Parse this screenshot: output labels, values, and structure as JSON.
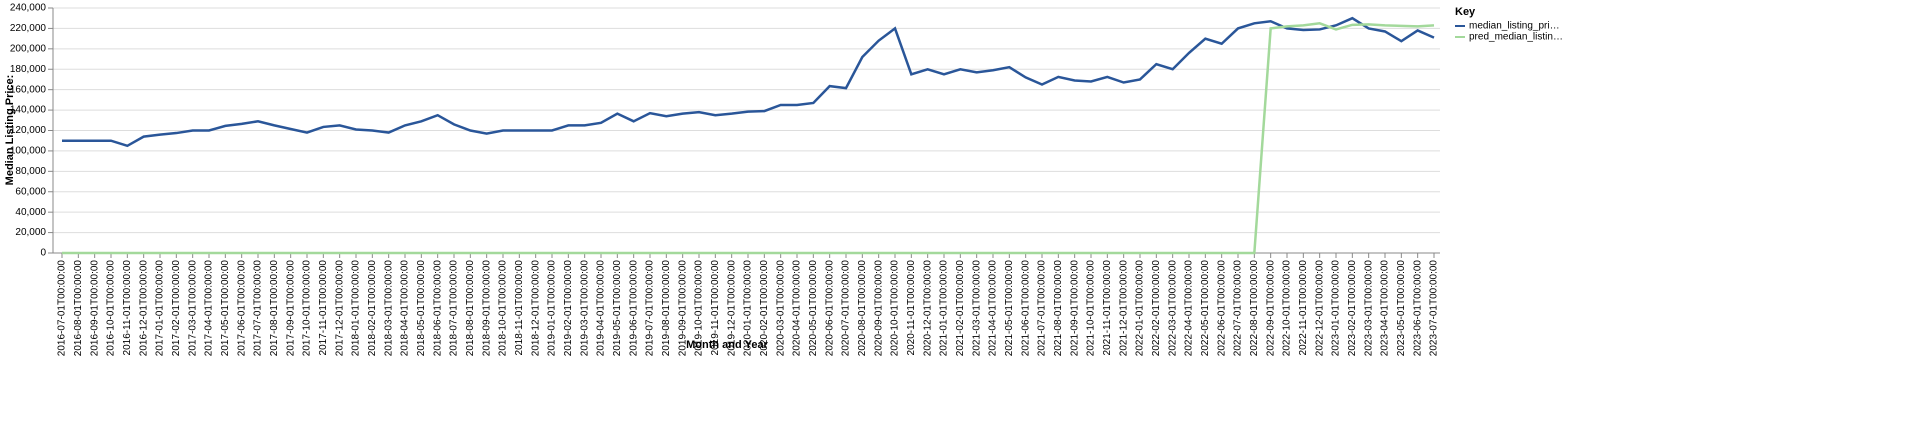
{
  "chart_data": {
    "type": "line",
    "x_label": "Month and Year",
    "y_label": "Median Listing Price:",
    "legend_title": "Key",
    "categories": [
      "2016-07-01T00:00:00",
      "2016-08-01T00:00:00",
      "2016-09-01T00:00:00",
      "2016-10-01T00:00:00",
      "2016-11-01T00:00:00",
      "2016-12-01T00:00:00",
      "2017-01-01T00:00:00",
      "2017-02-01T00:00:00",
      "2017-03-01T00:00:00",
      "2017-04-01T00:00:00",
      "2017-05-01T00:00:00",
      "2017-06-01T00:00:00",
      "2017-07-01T00:00:00",
      "2017-08-01T00:00:00",
      "2017-09-01T00:00:00",
      "2017-10-01T00:00:00",
      "2017-11-01T00:00:00",
      "2017-12-01T00:00:00",
      "2018-01-01T00:00:00",
      "2018-02-01T00:00:00",
      "2018-03-01T00:00:00",
      "2018-04-01T00:00:00",
      "2018-05-01T00:00:00",
      "2018-06-01T00:00:00",
      "2018-07-01T00:00:00",
      "2018-08-01T00:00:00",
      "2018-09-01T00:00:00",
      "2018-10-01T00:00:00",
      "2018-11-01T00:00:00",
      "2018-12-01T00:00:00",
      "2019-01-01T00:00:00",
      "2019-02-01T00:00:00",
      "2019-03-01T00:00:00",
      "2019-04-01T00:00:00",
      "2019-05-01T00:00:00",
      "2019-06-01T00:00:00",
      "2019-07-01T00:00:00",
      "2019-08-01T00:00:00",
      "2019-09-01T00:00:00",
      "2019-10-01T00:00:00",
      "2019-11-01T00:00:00",
      "2019-12-01T00:00:00",
      "2020-01-01T00:00:00",
      "2020-02-01T00:00:00",
      "2020-03-01T00:00:00",
      "2020-04-01T00:00:00",
      "2020-05-01T00:00:00",
      "2020-06-01T00:00:00",
      "2020-07-01T00:00:00",
      "2020-08-01T00:00:00",
      "2020-09-01T00:00:00",
      "2020-10-01T00:00:00",
      "2020-11-01T00:00:00",
      "2020-12-01T00:00:00",
      "2021-01-01T00:00:00",
      "2021-02-01T00:00:00",
      "2021-03-01T00:00:00",
      "2021-04-01T00:00:00",
      "2021-05-01T00:00:00",
      "2021-06-01T00:00:00",
      "2021-07-01T00:00:00",
      "2021-08-01T00:00:00",
      "2021-09-01T00:00:00",
      "2021-10-01T00:00:00",
      "2021-11-01T00:00:00",
      "2021-12-01T00:00:00",
      "2022-01-01T00:00:00",
      "2022-02-01T00:00:00",
      "2022-03-01T00:00:00",
      "2022-04-01T00:00:00",
      "2022-05-01T00:00:00",
      "2022-06-01T00:00:00",
      "2022-07-01T00:00:00",
      "2022-08-01T00:00:00",
      "2022-09-01T00:00:00",
      "2022-10-01T00:00:00",
      "2022-11-01T00:00:00",
      "2022-12-01T00:00:00",
      "2023-01-01T00:00:00",
      "2023-02-01T00:00:00",
      "2023-03-01T00:00:00",
      "2023-04-01T00:00:00",
      "2023-05-01T00:00:00",
      "2023-06-01T00:00:00",
      "2023-07-01T00:00:00"
    ],
    "series": [
      {
        "name": "median_listing_pri…",
        "color": "#2a5699",
        "values": [
          110000,
          110000,
          110000,
          110000,
          105000,
          114000,
          116000,
          117500,
          120000,
          120000,
          124500,
          126500,
          129000,
          125000,
          121500,
          118000,
          123500,
          125000,
          121000,
          120000,
          118000,
          125000,
          129000,
          135000,
          126000,
          120000,
          117000,
          120000,
          120000,
          120000,
          120000,
          125000,
          125000,
          127500,
          136500,
          129000,
          137000,
          134000,
          136500,
          138000,
          135000,
          136500,
          138500,
          139000,
          145000,
          145000,
          147000,
          163500,
          161500,
          192000,
          208000,
          220000,
          175000,
          180000,
          175000,
          180000,
          177000,
          179000,
          182000,
          172000,
          165000,
          172500,
          169000,
          168000,
          172500,
          167000,
          170000,
          185000,
          180000,
          196000,
          210000,
          205000,
          220000,
          225000,
          227000,
          220000,
          218500,
          219000,
          223000,
          230000,
          220000,
          217000,
          207500,
          218000,
          211000
        ]
      },
      {
        "name": "pred_median_listin…",
        "color": "#a3d99b",
        "values": [
          0,
          0,
          0,
          0,
          0,
          0,
          0,
          0,
          0,
          0,
          0,
          0,
          0,
          0,
          0,
          0,
          0,
          0,
          0,
          0,
          0,
          0,
          0,
          0,
          0,
          0,
          0,
          0,
          0,
          0,
          0,
          0,
          0,
          0,
          0,
          0,
          0,
          0,
          0,
          0,
          0,
          0,
          0,
          0,
          0,
          0,
          0,
          0,
          0,
          0,
          0,
          0,
          0,
          0,
          0,
          0,
          0,
          0,
          0,
          0,
          0,
          0,
          0,
          0,
          0,
          0,
          0,
          0,
          0,
          0,
          0,
          0,
          0,
          0,
          220000,
          222000,
          223000,
          225000,
          219000,
          223500,
          224000,
          223000,
          222500,
          222000,
          223000
        ]
      }
    ],
    "ylim": [
      0,
      240000
    ],
    "yticks": [
      0,
      {
        "value": 20000,
        "label": "20,000"
      },
      {
        "value": 40000,
        "label": "40,000"
      },
      {
        "value": 60000,
        "label": "60,000"
      },
      {
        "value": 80000,
        "label": "80,000"
      },
      {
        "value": 100000,
        "label": "100,000"
      },
      {
        "value": 120000,
        "label": "120,000"
      },
      {
        "value": 140000,
        "label": "140,000"
      },
      {
        "value": 160000,
        "label": "160,000"
      },
      {
        "value": 180000,
        "label": "180,000"
      },
      {
        "value": 200000,
        "label": "200,000"
      },
      {
        "value": 220000,
        "label": "220,000"
      },
      {
        "value": 240000,
        "label": "240,000"
      }
    ],
    "grid": true,
    "legend": "right"
  }
}
